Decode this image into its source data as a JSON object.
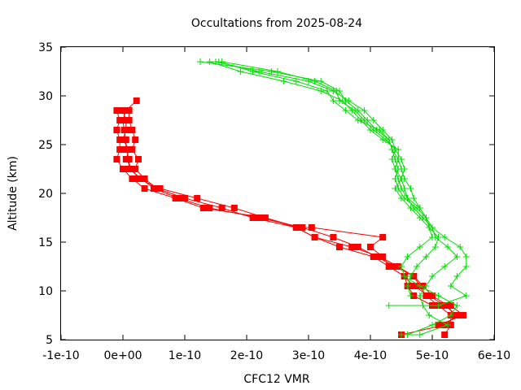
{
  "chart_data": {
    "type": "line",
    "title": "Occultations from 2025-08-24",
    "xlabel": "CFC12 VMR",
    "ylabel": "Altitude (km)",
    "xlim": [
      -1e-10,
      6e-10
    ],
    "ylim": [
      5,
      35
    ],
    "x_ticks": [
      -1e-10,
      0,
      1e-10,
      2e-10,
      3e-10,
      4e-10,
      5e-10,
      6e-10
    ],
    "x_tick_labels": [
      "-1e-10",
      "0e+00",
      "1e-10",
      "2e-10",
      "3e-10",
      "4e-10",
      "5e-10",
      "6e-10"
    ],
    "y_ticks": [
      5,
      10,
      15,
      20,
      25,
      30,
      35
    ],
    "y_tick_labels": [
      "5",
      "10",
      "15",
      "20",
      "25",
      "30",
      "35"
    ],
    "grid": false,
    "legend": "none",
    "series": [
      {
        "color": "#ff0000",
        "marker": "square",
        "points": [
          [
            2.2e-11,
            29.5
          ],
          [
            5e-12,
            28.5
          ],
          [
            0.0,
            27.5
          ],
          [
            2e-12,
            26.5
          ],
          [
            5e-12,
            25.5
          ],
          [
            5e-12,
            24.5
          ],
          [
            1e-11,
            23.5
          ],
          [
            1e-11,
            22.5
          ],
          [
            3e-11,
            21.5
          ],
          [
            5e-11,
            20.5
          ],
          [
            9e-11,
            19.5
          ],
          [
            1.4e-10,
            18.5
          ],
          [
            2.2e-10,
            17.5
          ],
          [
            2.9e-10,
            16.5
          ],
          [
            3.4e-10,
            15.5
          ],
          [
            3.8e-10,
            14.5
          ],
          [
            4.1e-10,
            13.5
          ],
          [
            4.4e-10,
            12.5
          ],
          [
            4.7e-10,
            11.5
          ],
          [
            4.8e-10,
            10.5
          ],
          [
            4.9e-10,
            9.5
          ],
          [
            5.1e-10,
            8.5
          ],
          [
            5.3e-10,
            7.5
          ],
          [
            5.3e-10,
            6.5
          ],
          [
            5.2e-10,
            5.5
          ]
        ]
      },
      {
        "color": "#ff0000",
        "marker": "square",
        "points": [
          [
            -1e-11,
            28.5
          ],
          [
            -5e-12,
            27.5
          ],
          [
            -1e-11,
            26.5
          ],
          [
            -5e-12,
            25.5
          ],
          [
            -5e-12,
            24.5
          ],
          [
            -1e-11,
            23.5
          ],
          [
            0.0,
            22.5
          ],
          [
            1.5e-11,
            21.5
          ],
          [
            3.5e-11,
            20.5
          ],
          [
            8.5e-11,
            19.5
          ],
          [
            1.3e-10,
            18.5
          ],
          [
            2.3e-10,
            17.5
          ],
          [
            2.8e-10,
            16.5
          ],
          [
            3.1e-10,
            15.5
          ],
          [
            3.5e-10,
            14.5
          ],
          [
            4.05e-10,
            13.5
          ],
          [
            4.3e-10,
            12.5
          ],
          [
            4.55e-10,
            11.5
          ],
          [
            4.7e-10,
            10.5
          ],
          [
            4.95e-10,
            9.5
          ],
          [
            5.2e-10,
            8.5
          ],
          [
            5.4e-10,
            7.5
          ],
          [
            5.2e-10,
            6.5
          ],
          [
            4.5e-10,
            5.5
          ]
        ]
      },
      {
        "color": "#ff0000",
        "marker": "square",
        "points": [
          [
            1e-11,
            28.5
          ],
          [
            1e-11,
            27.5
          ],
          [
            1.5e-11,
            26.5
          ],
          [
            2e-11,
            25.5
          ],
          [
            1.5e-11,
            24.5
          ],
          [
            2.5e-11,
            23.5
          ],
          [
            2e-11,
            22.5
          ],
          [
            3.5e-11,
            21.5
          ],
          [
            5.5e-11,
            20.5
          ],
          [
            1e-10,
            19.5
          ],
          [
            1.6e-10,
            18.5
          ],
          [
            2.1e-10,
            17.5
          ],
          [
            2.8e-10,
            16.5
          ],
          [
            3.1e-10,
            15.5
          ],
          [
            3.7e-10,
            14.5
          ],
          [
            4.15e-10,
            13.5
          ],
          [
            4.45e-10,
            12.5
          ],
          [
            4.7e-10,
            11.5
          ],
          [
            4.85e-10,
            10.5
          ],
          [
            5e-10,
            9.5
          ],
          [
            5.25e-10,
            8.5
          ],
          [
            5.35e-10,
            7.5
          ]
        ]
      },
      {
        "color": "#ff0000",
        "marker": "square",
        "points": [
          [
            0.0,
            28.5
          ],
          [
            5e-12,
            27.5
          ],
          [
            5e-12,
            26.5
          ],
          [
            0.0,
            25.5
          ],
          [
            1e-11,
            24.5
          ],
          [
            5e-12,
            23.5
          ],
          [
            1.5e-11,
            22.5
          ],
          [
            2.5e-11,
            21.5
          ],
          [
            6e-11,
            20.5
          ],
          [
            1.2e-10,
            19.5
          ],
          [
            1.8e-10,
            18.5
          ],
          [
            2.3e-10,
            17.5
          ],
          [
            2.85e-10,
            16.5
          ],
          [
            3.05e-10,
            16.5
          ],
          [
            4.2e-10,
            15.5
          ],
          [
            4e-10,
            14.5
          ],
          [
            4.2e-10,
            13.5
          ],
          [
            4.3e-10,
            12.5
          ],
          [
            4.55e-10,
            11.5
          ],
          [
            4.6e-10,
            10.5
          ],
          [
            4.7e-10,
            9.5
          ],
          [
            5e-10,
            8.5
          ],
          [
            5.3e-10,
            8.5
          ],
          [
            5.5e-10,
            7.5
          ],
          [
            5.1e-10,
            6.5
          ]
        ]
      },
      {
        "color": "#00dd00",
        "marker": "plus",
        "points": [
          [
            1.25e-10,
            33.5
          ],
          [
            2.4e-10,
            32.5
          ],
          [
            3.2e-10,
            31.5
          ],
          [
            3.5e-10,
            30.5
          ],
          [
            3.6e-10,
            29.5
          ],
          [
            3.8e-10,
            28.5
          ],
          [
            3.95e-10,
            27.5
          ],
          [
            4.1e-10,
            26.5
          ],
          [
            4.3e-10,
            25.5
          ],
          [
            4.35e-10,
            24.5
          ],
          [
            4.4e-10,
            23.5
          ],
          [
            4.45e-10,
            22.5
          ],
          [
            4.4e-10,
            21.5
          ],
          [
            4.45e-10,
            20.5
          ],
          [
            4.55e-10,
            19.5
          ],
          [
            4.75e-10,
            18.5
          ],
          [
            4.9e-10,
            17.5
          ],
          [
            4.95e-10,
            16.5
          ],
          [
            5e-10,
            15.5
          ],
          [
            4.8e-10,
            14.5
          ],
          [
            4.6e-10,
            13.5
          ],
          [
            4.5e-10,
            12.5
          ],
          [
            4.55e-10,
            11.5
          ],
          [
            4.8e-10,
            10.5
          ],
          [
            5.1e-10,
            9.5
          ],
          [
            5.4e-10,
            8.5
          ],
          [
            5.3e-10,
            7.5
          ],
          [
            5e-10,
            6.5
          ],
          [
            4.6e-10,
            5.5
          ]
        ]
      },
      {
        "color": "#00dd00",
        "marker": "plus",
        "points": [
          [
            1.5e-10,
            33.5
          ],
          [
            2.2e-10,
            32.5
          ],
          [
            3e-10,
            31.5
          ],
          [
            3.4e-10,
            30.5
          ],
          [
            3.65e-10,
            29.5
          ],
          [
            3.9e-10,
            28.5
          ],
          [
            4.05e-10,
            27.5
          ],
          [
            4.2e-10,
            26.5
          ],
          [
            4.35e-10,
            25.5
          ],
          [
            4.4e-10,
            24.5
          ],
          [
            4.35e-10,
            23.5
          ],
          [
            4.4e-10,
            22.5
          ],
          [
            4.5e-10,
            21.5
          ],
          [
            4.55e-10,
            20.5
          ],
          [
            4.6e-10,
            19.5
          ],
          [
            4.7e-10,
            18.5
          ],
          [
            4.85e-10,
            17.5
          ],
          [
            5e-10,
            16.5
          ],
          [
            5.2e-10,
            15.5
          ],
          [
            5.45e-10,
            14.5
          ],
          [
            5.55e-10,
            13.5
          ],
          [
            5.55e-10,
            12.5
          ],
          [
            5.4e-10,
            11.5
          ],
          [
            5.3e-10,
            10.5
          ],
          [
            5.55e-10,
            9.5
          ],
          [
            5.1e-10,
            8.5
          ],
          [
            4.3e-10,
            8.5
          ]
        ]
      },
      {
        "color": "#00dd00",
        "marker": "plus",
        "points": [
          [
            1.4e-10,
            33.5
          ],
          [
            1.9e-10,
            32.5
          ],
          [
            2.6e-10,
            31.5
          ],
          [
            3.2e-10,
            30.5
          ],
          [
            3.55e-10,
            29.5
          ],
          [
            3.7e-10,
            28.5
          ],
          [
            3.85e-10,
            27.5
          ],
          [
            4e-10,
            26.5
          ],
          [
            4.2e-10,
            25.5
          ],
          [
            4.45e-10,
            24.5
          ],
          [
            4.45e-10,
            23.5
          ],
          [
            4.5e-10,
            22.5
          ],
          [
            4.55e-10,
            21.5
          ],
          [
            4.65e-10,
            20.5
          ],
          [
            4.7e-10,
            19.5
          ],
          [
            4.8e-10,
            18.5
          ],
          [
            4.9e-10,
            17.5
          ],
          [
            5e-10,
            16.5
          ],
          [
            5.05e-10,
            15.5
          ],
          [
            5.25e-10,
            14.5
          ],
          [
            5.4e-10,
            13.5
          ],
          [
            5.2e-10,
            12.5
          ],
          [
            5e-10,
            11.5
          ],
          [
            4.9e-10,
            10.5
          ],
          [
            4.8e-10,
            9.5
          ],
          [
            4.85e-10,
            8.5
          ],
          [
            4.95e-10,
            7.5
          ],
          [
            5.25e-10,
            6.5
          ],
          [
            4.8e-10,
            5.5
          ],
          [
            4.5e-10,
            5.5
          ]
        ]
      },
      {
        "color": "#00dd00",
        "marker": "plus",
        "points": [
          [
            1.6e-10,
            33.5
          ],
          [
            2.5e-10,
            32.5
          ],
          [
            3.1e-10,
            31.5
          ],
          [
            3.45e-10,
            30.5
          ],
          [
            3.5e-10,
            29.5
          ],
          [
            3.75e-10,
            28.5
          ],
          [
            3.9e-10,
            27.5
          ],
          [
            4.05e-10,
            26.5
          ],
          [
            4.25e-10,
            25.5
          ],
          [
            4.4e-10,
            24.5
          ],
          [
            4.5e-10,
            23.5
          ],
          [
            4.55e-10,
            22.5
          ],
          [
            4.5e-10,
            21.5
          ],
          [
            4.4e-10,
            20.5
          ],
          [
            4.5e-10,
            19.5
          ],
          [
            4.65e-10,
            18.5
          ],
          [
            4.8e-10,
            17.5
          ],
          [
            4.95e-10,
            16.5
          ],
          [
            5.1e-10,
            15.5
          ],
          [
            5.05e-10,
            14.5
          ],
          [
            4.9e-10,
            13.5
          ],
          [
            4.75e-10,
            12.5
          ],
          [
            4.65e-10,
            11.5
          ],
          [
            4.6e-10,
            10.5
          ],
          [
            4.65e-10,
            9.5
          ]
        ]
      },
      {
        "color": "#00dd00",
        "marker": "plus",
        "points": [
          [
            1.55e-10,
            33.5
          ],
          [
            2.1e-10,
            32.5
          ],
          [
            2.8e-10,
            31.5
          ],
          [
            3.3e-10,
            30.5
          ],
          [
            3.4e-10,
            29.5
          ],
          [
            3.6e-10,
            28.5
          ],
          [
            3.8e-10,
            27.5
          ],
          [
            4.15e-10,
            26.5
          ],
          [
            4.3e-10,
            25.5
          ],
          [
            4.35e-10,
            24.5
          ],
          [
            4.45e-10,
            23.5
          ],
          [
            4.4e-10,
            22.5
          ],
          [
            4.45e-10,
            21.5
          ],
          [
            4.5e-10,
            20.5
          ],
          [
            4.6e-10,
            19.5
          ],
          [
            4.8e-10,
            18.5
          ]
        ]
      }
    ]
  }
}
